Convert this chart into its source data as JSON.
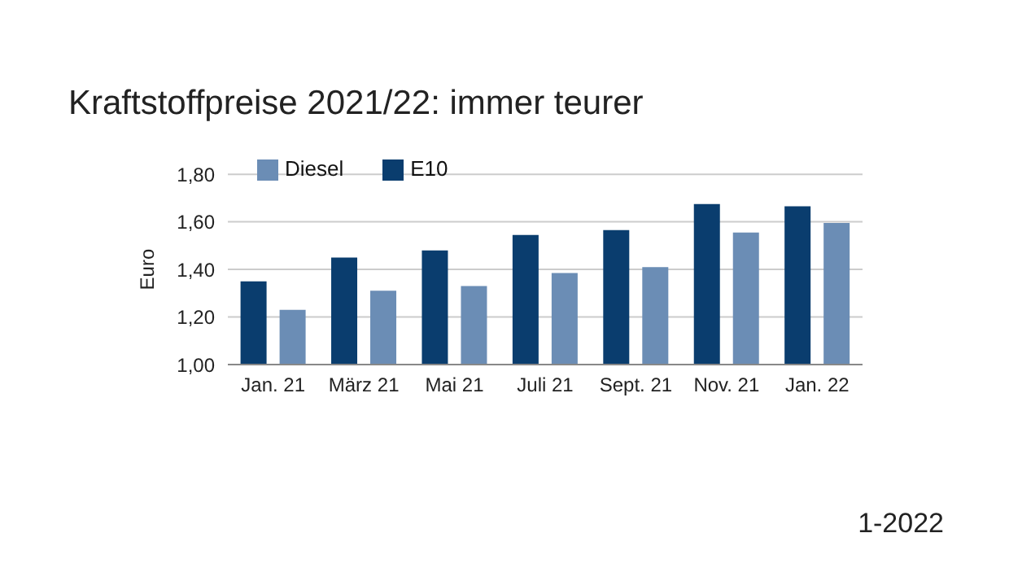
{
  "chart_data": {
    "type": "bar",
    "title": "Kraftstoffpreise 2021/22: immer teurer",
    "ylabel": "Euro",
    "categories": [
      "Jan. 21",
      "März 21",
      "Mai 21",
      "Juli 21",
      "Sept. 21",
      "Nov. 21",
      "Jan. 22"
    ],
    "series": [
      {
        "name": "E10",
        "color": "#0a3d6e",
        "values": [
          1.35,
          1.45,
          1.48,
          1.545,
          1.565,
          1.675,
          1.665
        ]
      },
      {
        "name": "Diesel",
        "color": "#6b8db5",
        "values": [
          1.23,
          1.31,
          1.33,
          1.385,
          1.41,
          1.555,
          1.595
        ]
      }
    ],
    "ylim": [
      1.0,
      1.8
    ],
    "yticks": [
      {
        "value": 1.0,
        "label": "1,00"
      },
      {
        "value": 1.2,
        "label": "1,20"
      },
      {
        "value": 1.4,
        "label": "1,40"
      },
      {
        "value": 1.6,
        "label": "1,60"
      },
      {
        "value": 1.8,
        "label": "1,80"
      }
    ],
    "grid": "y",
    "legend": "top left",
    "annotations": [
      "1-2022"
    ]
  }
}
